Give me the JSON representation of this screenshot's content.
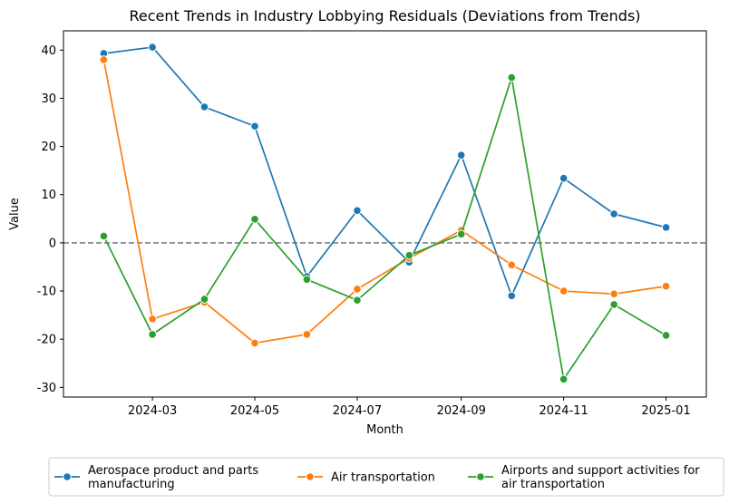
{
  "chart_data": {
    "type": "line",
    "title": "Recent Trends in Industry Lobbying Residuals (Deviations from Trends)",
    "xlabel": "Month",
    "ylabel": "Value",
    "x": [
      "2024-02",
      "2024-03",
      "2024-04",
      "2024-05",
      "2024-06",
      "2024-07",
      "2024-08",
      "2024-09",
      "2024-10",
      "2024-11",
      "2024-12",
      "2025-01"
    ],
    "xtick_labels": [
      "2024-03",
      "2024-05",
      "2024-07",
      "2024-09",
      "2024-11",
      "2025-01"
    ],
    "xlim": [
      "2024-01-08",
      "2025-01-25"
    ],
    "ylim": [
      -32,
      44
    ],
    "yticks": [
      -30,
      -20,
      -10,
      0,
      10,
      20,
      30,
      40
    ],
    "reference_line": {
      "y": 0,
      "style": "dashed",
      "color": "#808080"
    },
    "grid": false,
    "legend_position": "bottom-center",
    "series": [
      {
        "name": "Aerospace product and parts manufacturing",
        "color": "#1f77b4",
        "values": [
          39.3,
          40.6,
          28.2,
          24.2,
          -7.0,
          6.7,
          -4.0,
          18.2,
          -11.0,
          13.4,
          6.0,
          3.2
        ]
      },
      {
        "name": "Air transportation",
        "color": "#ff7f0e",
        "values": [
          38.0,
          -15.8,
          -12.3,
          -20.8,
          -19.0,
          -9.6,
          -3.2,
          2.6,
          -4.6,
          -10.0,
          -10.6,
          -9.0
        ]
      },
      {
        "name": "Airports and support activities for air transportation",
        "color": "#2ca02c",
        "values": [
          1.4,
          -19.0,
          -11.7,
          4.9,
          -7.6,
          -11.9,
          -2.6,
          1.8,
          34.3,
          -28.3,
          -12.8,
          -19.2
        ]
      }
    ]
  }
}
